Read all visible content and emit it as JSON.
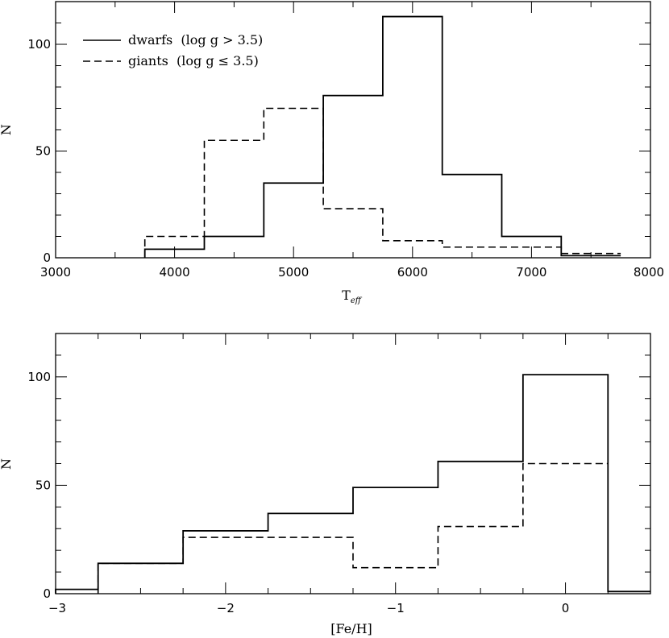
{
  "chart_data": [
    {
      "type": "histogram",
      "xlabel": "T_eff",
      "xlabel_main": "T",
      "xlabel_sub": "eff",
      "ylabel": "N",
      "xlim": [
        3000,
        8000
      ],
      "ylim": [
        0,
        120
      ],
      "xticks": [
        3000,
        4000,
        5000,
        6000,
        7000,
        8000
      ],
      "yticks": [
        0,
        50,
        100
      ],
      "legend_position": "top-left",
      "series": [
        {
          "name": "dwarfs  (log g > 3.5)",
          "style": "solid",
          "bin_edges": [
            3750,
            4250,
            4750,
            5250,
            5750,
            6250,
            6750,
            7250,
            7750
          ],
          "counts": [
            4,
            10,
            35,
            76,
            113,
            39,
            10,
            1
          ]
        },
        {
          "name": "giants  (log g ≤ 3.5)",
          "style": "dashed",
          "bin_edges": [
            3750,
            4250,
            4750,
            5250,
            5750,
            6250,
            6750,
            7250,
            7750
          ],
          "counts": [
            10,
            55,
            70,
            23,
            8,
            5,
            5,
            2
          ]
        }
      ]
    },
    {
      "type": "histogram",
      "xlabel": "[Fe/H]",
      "ylabel": "N",
      "xlim": [
        -3,
        0.5
      ],
      "ylim": [
        0,
        120
      ],
      "xticks": [
        -3,
        -2,
        -1,
        0
      ],
      "xtick_labels": [
        "−3",
        "−2",
        "−1",
        "0"
      ],
      "yticks": [
        0,
        50,
        100
      ],
      "series": [
        {
          "name": "dwarfs",
          "style": "solid",
          "bin_edges": [
            -3,
            -2.75,
            -2.25,
            -1.75,
            -1.25,
            -0.75,
            -0.25,
            0.25,
            0.5
          ],
          "counts": [
            2,
            14,
            29,
            37,
            49,
            61,
            101,
            1
          ]
        },
        {
          "name": "giants",
          "style": "dashed",
          "bin_edges": [
            -2.75,
            -2.25,
            -1.75,
            -1.25,
            -0.75,
            -0.25,
            0.25
          ],
          "counts": [
            14,
            26,
            26,
            12,
            31,
            60
          ]
        }
      ]
    }
  ]
}
